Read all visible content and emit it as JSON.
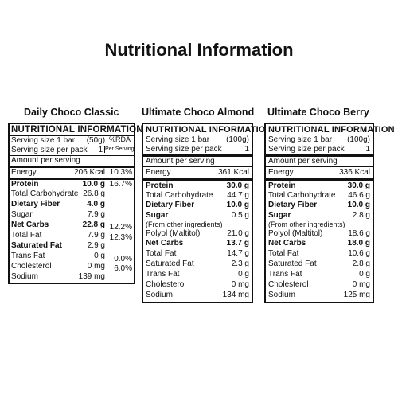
{
  "title": "Nutritional Information",
  "panels": [
    {
      "product": "Daily Choco Classic",
      "header": "NUTRITIONAL INFORMATION",
      "serving_size_label": "Serving size 1 bar",
      "serving_size_value": "(50g)",
      "rda_header": "%RDA",
      "rda_subheader": "Per Serving",
      "per_pack_label": "Serving size per pack",
      "per_pack_value": "1",
      "amount_label": "Amount per serving",
      "rows": [
        {
          "label": "Energy",
          "value": "206 Kcal",
          "rda": "10.3%"
        },
        {
          "label": "Protein",
          "value": "10.0 g",
          "rda": "16.7%"
        },
        {
          "label": "Total Carbohydrate",
          "value": "26.8 g",
          "rda": ""
        },
        {
          "label": "Dietary Fiber",
          "value": "4.0 g",
          "rda": ""
        },
        {
          "label": "Sugar",
          "value": "7.9 g",
          "rda": ""
        },
        {
          "label": "Net Carbs",
          "value": "22.8 g",
          "rda": "12.2%"
        },
        {
          "label": "Total Fat",
          "value": "7.9 g",
          "rda": "12.3%"
        },
        {
          "label": "Saturated Fat",
          "value": "2.9 g",
          "rda": ""
        },
        {
          "label": "Trans Fat",
          "value": "0 g",
          "rda": "0.0%"
        },
        {
          "label": "Cholesterol",
          "value": "0 mg",
          "rda": "6.0%"
        },
        {
          "label": "Sodium",
          "value": "139 mg",
          "rda": ""
        }
      ]
    },
    {
      "product": "Ultimate Choco Almond",
      "header": "NUTRITIONAL INFORMATION",
      "serving_size_label": "Serving size 1 bar",
      "serving_size_value": "(100g)",
      "per_pack_label": "Serving size per pack",
      "per_pack_value": "1",
      "amount_label": "Amount per serving",
      "rows": [
        {
          "label": "Energy",
          "value": "361 Kcal"
        },
        {
          "label": "Protein",
          "value": "30.0 g"
        },
        {
          "label": "Total Carbohydrate",
          "value": "44.7 g"
        },
        {
          "label": "Dietary Fiber",
          "value": "10.0 g"
        },
        {
          "label": "Sugar",
          "value": "0.5 g",
          "note": "(From other ingredients)"
        },
        {
          "label": "Polyol (Maltitol)",
          "value": "21.0 g"
        },
        {
          "label": "Net Carbs",
          "value": "13.7 g"
        },
        {
          "label": "Total Fat",
          "value": "14.7 g"
        },
        {
          "label": "Saturated Fat",
          "value": "2.3 g"
        },
        {
          "label": "Trans Fat",
          "value": "0 g"
        },
        {
          "label": "Cholesterol",
          "value": "0 mg"
        },
        {
          "label": "Sodium",
          "value": "134 mg"
        }
      ]
    },
    {
      "product": "Ultimate Choco Berry",
      "header": "NUTRITIONAL INFORMATION",
      "serving_size_label": "Serving size 1 bar",
      "serving_size_value": "(100g)",
      "per_pack_label": "Serving size per pack",
      "per_pack_value": "1",
      "amount_label": "Amount per serving",
      "rows": [
        {
          "label": "Energy",
          "value": "336 Kcal"
        },
        {
          "label": "Protein",
          "value": "30.0 g"
        },
        {
          "label": "Total Carbohydrate",
          "value": "46.6 g"
        },
        {
          "label": "Dietary Fiber",
          "value": "10.0 g"
        },
        {
          "label": "Sugar",
          "value": "2.8 g",
          "note": "(From other ingredients)"
        },
        {
          "label": "Polyol (Maltitol)",
          "value": "18.6 g"
        },
        {
          "label": "Net Carbs",
          "value": "18.0 g"
        },
        {
          "label": "Total Fat",
          "value": "10.6 g"
        },
        {
          "label": "Saturated Fat",
          "value": "2.8 g"
        },
        {
          "label": "Trans Fat",
          "value": "0 g"
        },
        {
          "label": "Cholesterol",
          "value": "0 mg"
        },
        {
          "label": "Sodium",
          "value": "125 mg"
        }
      ]
    }
  ]
}
